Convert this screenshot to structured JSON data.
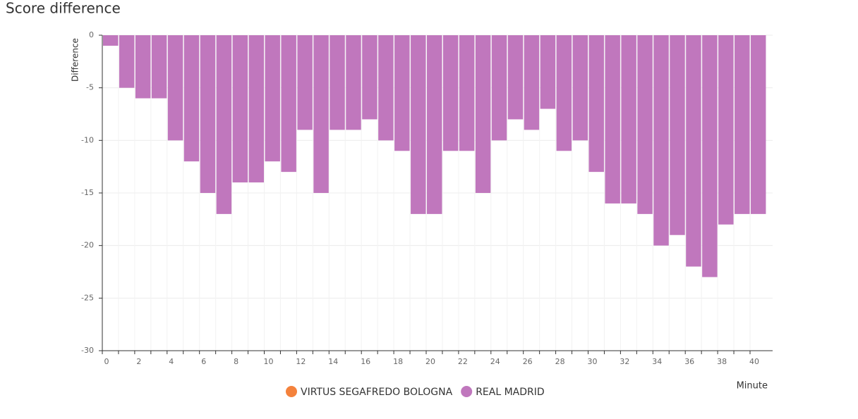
{
  "chart_data": {
    "type": "bar",
    "title": "Score difference",
    "ylabel": "Difference",
    "xlabel": "Minute",
    "categories": [
      "0",
      null,
      "2",
      null,
      "4",
      null,
      "6",
      null,
      "8",
      null,
      "10",
      null,
      "12",
      null,
      "14",
      null,
      "16",
      null,
      "18",
      null,
      "20",
      null,
      "22",
      null,
      "24",
      null,
      "26",
      null,
      "28",
      null,
      "30",
      null,
      "32",
      null,
      "34",
      null,
      "36",
      null,
      "38",
      null,
      "40"
    ],
    "series": [
      {
        "name": "VIRTUS SEGAFREDO BOLOGNA",
        "color": "#f4823c",
        "values": [
          null,
          null,
          null,
          null,
          null,
          null,
          null,
          null,
          null,
          null,
          null,
          null,
          null,
          null,
          null,
          null,
          null,
          null,
          null,
          null,
          null,
          null,
          null,
          null,
          null,
          null,
          null,
          null,
          null,
          null,
          null,
          null,
          null,
          null,
          null,
          null,
          null,
          null,
          null,
          null,
          null
        ]
      },
      {
        "name": "REAL MADRID",
        "color": "#c077bd",
        "values": [
          -1,
          -5,
          -6,
          -6,
          -10,
          -12,
          -15,
          -17,
          -14,
          -14,
          -12,
          -13,
          -9,
          -15,
          -9,
          -9,
          -8,
          -10,
          -11,
          -17,
          -17,
          -11,
          -11,
          -15,
          -10,
          -8,
          -9,
          -7,
          -11,
          -10,
          -13,
          -16,
          -16,
          -17,
          -20,
          -19,
          -22,
          -23,
          -18,
          -17,
          -17
        ]
      }
    ],
    "ylim": [
      -30,
      0
    ],
    "yticks": [
      -30,
      -25,
      -20,
      -15,
      -10,
      -5,
      0
    ],
    "grid": true
  }
}
